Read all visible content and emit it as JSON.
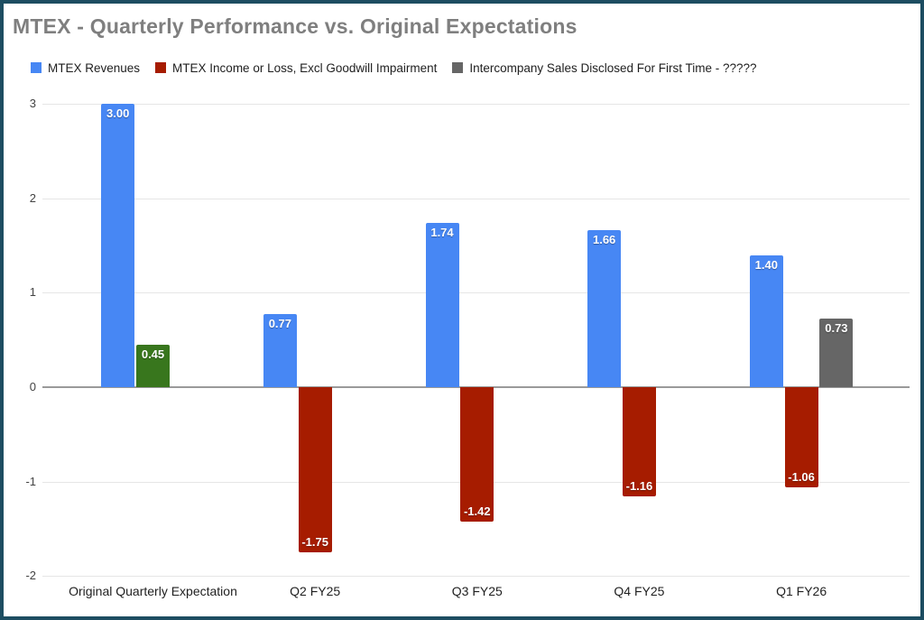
{
  "frame": {
    "border_color": "#1d4d61",
    "background_color": "#ffffff",
    "title_color": "#7f7f7f"
  },
  "chart_data": {
    "type": "bar",
    "title": "MTEX - Quarterly Performance vs. Original Expectations",
    "categories": [
      "Original Quarterly Expectation",
      "Q2 FY25",
      "Q3 FY25",
      "Q4 FY25",
      "Q1 FY26"
    ],
    "series": [
      {
        "name": "MTEX Revenues",
        "color": "#4787f4",
        "values": [
          3.0,
          0.77,
          1.74,
          1.66,
          1.4
        ]
      },
      {
        "name": "MTEX Income or Loss, Excl Goodwill Impairment",
        "color": "#a61c00",
        "values": [
          0.45,
          -1.75,
          -1.42,
          -1.16,
          -1.06
        ],
        "point_colors": {
          "0": "#38761d"
        }
      },
      {
        "name": "Intercompany Sales Disclosed For First Time - ?????",
        "color": "#666666",
        "values": [
          null,
          null,
          null,
          null,
          0.73
        ]
      }
    ],
    "value_label_format": "2-decimals, white bold, inside bar end",
    "y_ticks": [
      3,
      2,
      1,
      0,
      -1,
      -2
    ],
    "ylim": [
      -2,
      3
    ],
    "grid": true,
    "legend_position": "top",
    "gridline_color": "#e6e6e6",
    "baseline_color": "#9a9a9a"
  }
}
